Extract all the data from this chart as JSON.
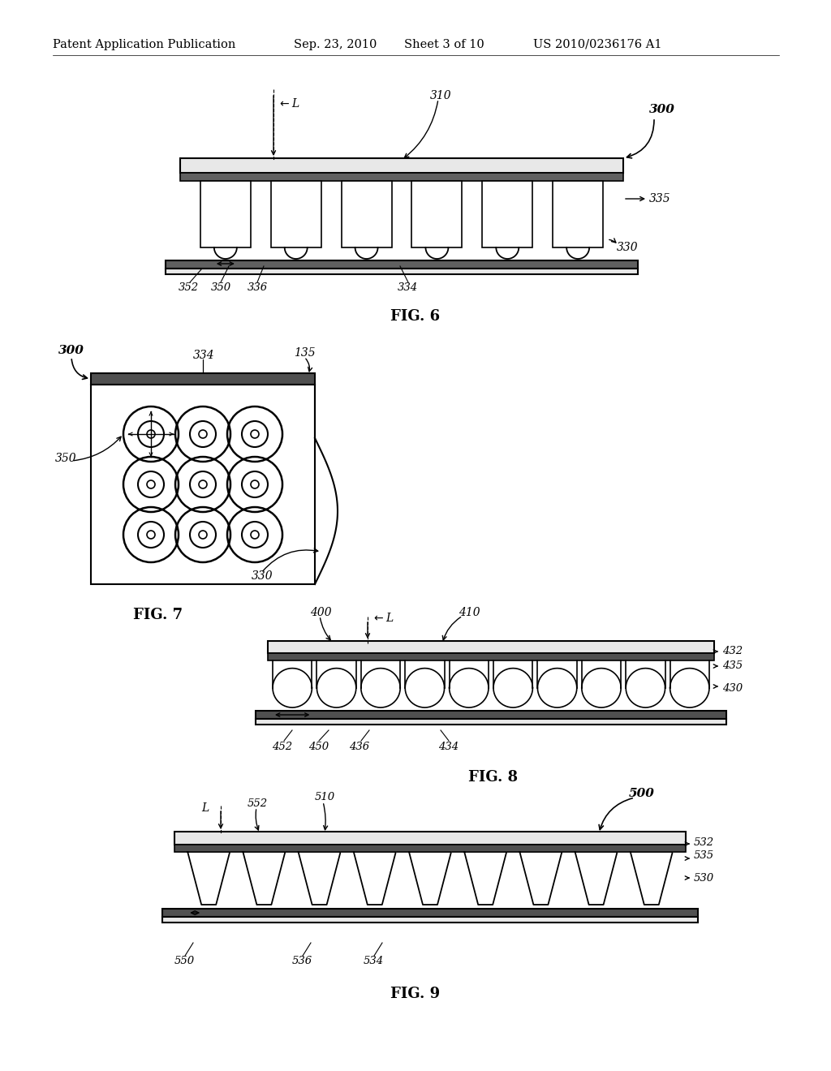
{
  "bg_color": "#ffffff",
  "header_text": "Patent Application Publication",
  "header_date": "Sep. 23, 2010",
  "header_sheet": "Sheet 3 of 10",
  "header_patent": "US 2010/0236176 A1",
  "fig6_label": "FIG. 6",
  "fig7_label": "FIG. 7",
  "fig8_label": "FIG. 8",
  "fig9_label": "FIG. 9"
}
